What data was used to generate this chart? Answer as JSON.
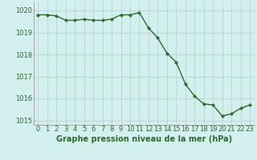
{
  "x": [
    0,
    1,
    2,
    3,
    4,
    5,
    6,
    7,
    8,
    9,
    10,
    11,
    12,
    13,
    14,
    15,
    16,
    17,
    18,
    19,
    20,
    21,
    22,
    23
  ],
  "y": [
    1019.8,
    1019.8,
    1019.75,
    1019.55,
    1019.55,
    1019.6,
    1019.55,
    1019.55,
    1019.6,
    1019.8,
    1019.8,
    1019.9,
    1019.2,
    1018.75,
    1018.05,
    1017.65,
    1016.65,
    1016.1,
    1015.75,
    1015.7,
    1015.2,
    1015.3,
    1015.55,
    1015.7
  ],
  "line_color": "#2d6a2d",
  "marker": "D",
  "marker_size": 2.0,
  "linewidth": 1.0,
  "bg_color": "#d4f0ee",
  "grid_color": "#b0d8d0",
  "xlabel": "Graphe pression niveau de la mer (hPa)",
  "xlabel_color": "#2d6a2d",
  "xlabel_fontsize": 7.0,
  "tick_color": "#2d6a2d",
  "tick_fontsize": 6.0,
  "ylim": [
    1014.8,
    1020.4
  ],
  "yticks": [
    1015,
    1016,
    1017,
    1018,
    1019,
    1020
  ],
  "xticks": [
    0,
    1,
    2,
    3,
    4,
    5,
    6,
    7,
    8,
    9,
    10,
    11,
    12,
    13,
    14,
    15,
    16,
    17,
    18,
    19,
    20,
    21,
    22,
    23
  ]
}
